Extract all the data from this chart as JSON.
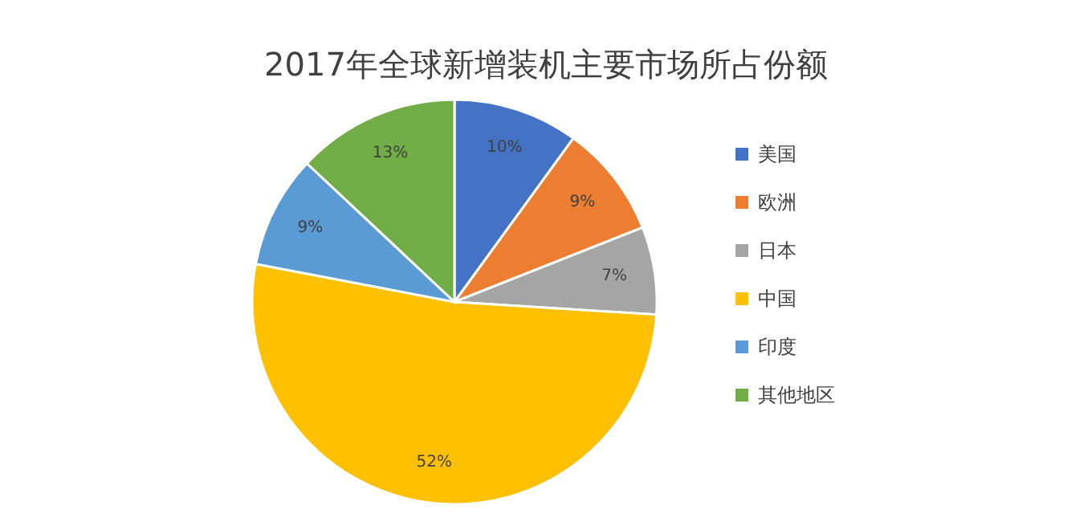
{
  "chart_data": {
    "type": "pie",
    "title": "2017年全球新增装机主要市场所占份额",
    "categories": [
      "美国",
      "欧洲",
      "日本",
      "中国",
      "印度",
      "其他地区"
    ],
    "values": [
      10,
      9,
      7,
      52,
      9,
      13
    ],
    "colors": [
      "#4472c4",
      "#ed7d31",
      "#a5a5a5",
      "#ffc000",
      "#5b9bd5",
      "#70ad47"
    ],
    "value_labels": [
      "10%",
      "9%",
      "7%",
      "52%",
      "9%",
      "13%"
    ],
    "legend": "right"
  }
}
